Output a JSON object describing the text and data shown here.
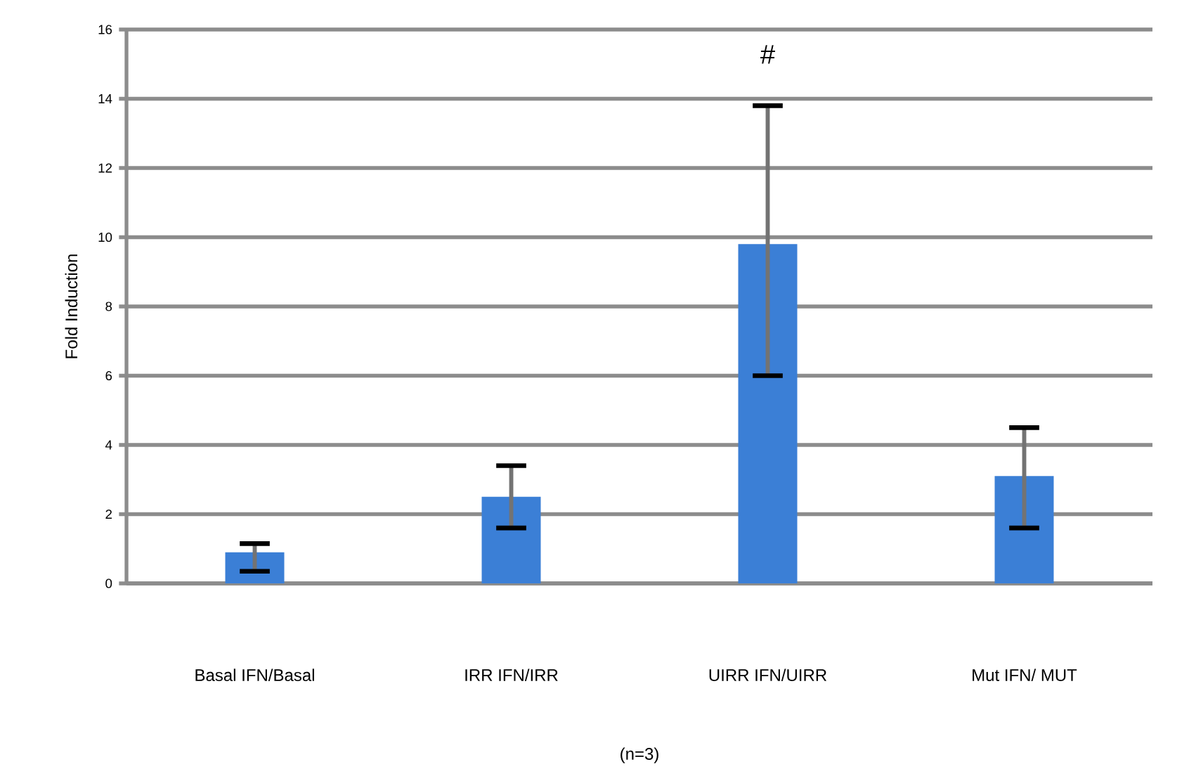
{
  "chart_data": {
    "type": "bar",
    "ylabel": "Fold Induction",
    "xlabel": "(n=3)",
    "categories": [
      "Basal IFN/Basal",
      "IRR IFN/IRR",
      "UIRR IFN/UIRR",
      "Mut IFN/ MUT"
    ],
    "values": [
      0.9,
      2.5,
      9.8,
      3.1
    ],
    "errors": [
      [
        0.35,
        1.15
      ],
      [
        1.6,
        3.4
      ],
      [
        6.0,
        13.8
      ],
      [
        1.6,
        4.5
      ]
    ],
    "color": "#3b7fd6",
    "ylim": [
      0,
      16
    ],
    "yticks": [
      0,
      2,
      4,
      6,
      8,
      10,
      12,
      14,
      16
    ],
    "grid": "y",
    "annotations": [
      "#"
    ]
  }
}
